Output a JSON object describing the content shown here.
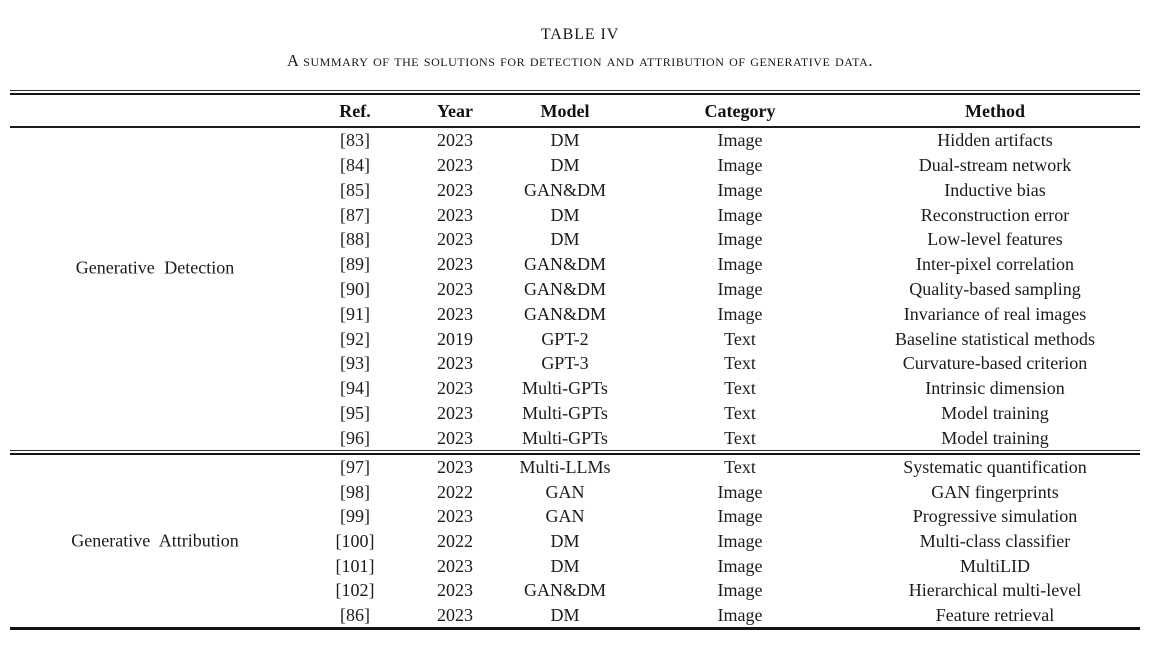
{
  "table": {
    "title": "TABLE IV",
    "caption": "A summary of the solutions for detection and attribution of generative data.",
    "columns": [
      "Ref.",
      "Year",
      "Model",
      "Category",
      "Method"
    ],
    "sections": [
      {
        "group": "Generative Detection",
        "rows": [
          [
            "[83]",
            "2023",
            "DM",
            "Image",
            "Hidden artifacts"
          ],
          [
            "[84]",
            "2023",
            "DM",
            "Image",
            "Dual-stream network"
          ],
          [
            "[85]",
            "2023",
            "GAN&DM",
            "Image",
            "Inductive bias"
          ],
          [
            "[87]",
            "2023",
            "DM",
            "Image",
            "Reconstruction error"
          ],
          [
            "[88]",
            "2023",
            "DM",
            "Image",
            "Low-level features"
          ],
          [
            "[89]",
            "2023",
            "GAN&DM",
            "Image",
            "Inter-pixel correlation"
          ],
          [
            "[90]",
            "2023",
            "GAN&DM",
            "Image",
            "Quality-based sampling"
          ],
          [
            "[91]",
            "2023",
            "GAN&DM",
            "Image",
            "Invariance of real images"
          ],
          [
            "[92]",
            "2019",
            "GPT-2",
            "Text",
            "Baseline statistical methods"
          ],
          [
            "[93]",
            "2023",
            "GPT-3",
            "Text",
            "Curvature-based criterion"
          ],
          [
            "[94]",
            "2023",
            "Multi-GPTs",
            "Text",
            "Intrinsic dimension"
          ],
          [
            "[95]",
            "2023",
            "Multi-GPTs",
            "Text",
            "Model training"
          ],
          [
            "[96]",
            "2023",
            "Multi-GPTs",
            "Text",
            "Model training"
          ]
        ]
      },
      {
        "group": "Generative Attribution",
        "rows": [
          [
            "[97]",
            "2023",
            "Multi-LLMs",
            "Text",
            "Systematic quantification"
          ],
          [
            "[98]",
            "2022",
            "GAN",
            "Image",
            "GAN fingerprints"
          ],
          [
            "[99]",
            "2023",
            "GAN",
            "Image",
            "Progressive simulation"
          ],
          [
            "[100]",
            "2022",
            "DM",
            "Image",
            "Multi-class classifier"
          ],
          [
            "[101]",
            "2023",
            "DM",
            "Image",
            "MultiLID"
          ],
          [
            "[102]",
            "2023",
            "GAN&DM",
            "Image",
            "Hierarchical multi-level"
          ],
          [
            "[86]",
            "2023",
            "DM",
            "Image",
            "Feature retrieval"
          ]
        ]
      }
    ]
  }
}
